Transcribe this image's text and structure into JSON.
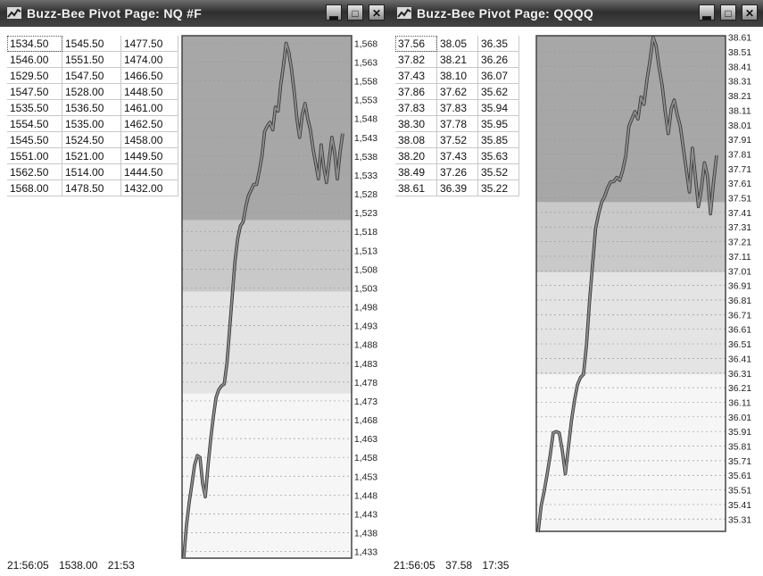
{
  "windows": [
    {
      "key": "nq",
      "title": "Buzz-Bee Pivot Page: NQ #F",
      "rows": [
        [
          "1534.50",
          "1545.50",
          "1477.50"
        ],
        [
          "1546.00",
          "1551.50",
          "1474.00"
        ],
        [
          "1529.50",
          "1547.50",
          "1466.50"
        ],
        [
          "1547.50",
          "1528.00",
          "1448.50"
        ],
        [
          "1535.50",
          "1536.50",
          "1461.00"
        ],
        [
          "1554.50",
          "1535.00",
          "1462.50"
        ],
        [
          "1545.50",
          "1524.50",
          "1458.00"
        ],
        [
          "1551.00",
          "1521.00",
          "1449.50"
        ],
        [
          "1562.50",
          "1514.00",
          "1444.50"
        ],
        [
          "1568.00",
          "1478.50",
          "1432.00"
        ]
      ],
      "status": [
        "21:56:05",
        "1538.00",
        "21:53"
      ]
    },
    {
      "key": "qqqq",
      "title": "Buzz-Bee Pivot Page: QQQQ",
      "rows": [
        [
          "37.56",
          "38.05",
          "36.35"
        ],
        [
          "37.82",
          "38.21",
          "36.26"
        ],
        [
          "37.43",
          "38.10",
          "36.07"
        ],
        [
          "37.86",
          "37.62",
          "35.62"
        ],
        [
          "37.83",
          "37.83",
          "35.94"
        ],
        [
          "38.30",
          "37.78",
          "35.95"
        ],
        [
          "38.08",
          "37.52",
          "35.85"
        ],
        [
          "38.20",
          "37.43",
          "35.63"
        ],
        [
          "38.49",
          "37.26",
          "35.52"
        ],
        [
          "38.61",
          "36.39",
          "35.22"
        ]
      ],
      "status": [
        "21:56:05",
        "37.58",
        "17:35"
      ]
    }
  ],
  "chart_data": [
    {
      "type": "line",
      "title": "",
      "ylabels": [
        "1,568",
        "1,563",
        "1,558",
        "1,553",
        "1,548",
        "1,543",
        "1,538",
        "1,533",
        "1,528",
        "1,523",
        "1,518",
        "1,513",
        "1,508",
        "1,503",
        "1,498",
        "1,493",
        "1,488",
        "1,483",
        "1,478",
        "1,473",
        "1,468",
        "1,463",
        "1,458",
        "1,453",
        "1,448",
        "1,443",
        "1,438",
        "1,433"
      ],
      "ylim": [
        1431,
        1570
      ],
      "grid": true,
      "series": [
        {
          "values": [
            1431.5,
            1440,
            1446,
            1451,
            1456,
            1458.5,
            1458,
            1451,
            1447.5,
            1456,
            1463,
            1469,
            1474,
            1476,
            1477,
            1477.5,
            1483,
            1492,
            1501,
            1510,
            1516,
            1519.5,
            1520.5,
            1524.5,
            1527.5,
            1529,
            1530.5,
            1530.5,
            1534,
            1538,
            1544.5,
            1546,
            1547,
            1545,
            1551,
            1550,
            1557,
            1562,
            1568,
            1565.5,
            1561,
            1555,
            1548,
            1543,
            1549,
            1552,
            1548,
            1545,
            1540,
            1536,
            1532,
            1541,
            1535,
            1531,
            1537,
            1543,
            1539,
            1532,
            1539,
            1544
          ]
        }
      ]
    },
    {
      "type": "line",
      "title": "",
      "ylabels": [
        "38.61",
        "38.51",
        "38.41",
        "38.31",
        "38.21",
        "38.11",
        "38.01",
        "37.91",
        "37.81",
        "37.71",
        "37.61",
        "37.51",
        "37.41",
        "37.31",
        "37.21",
        "37.11",
        "37.01",
        "36.91",
        "36.81",
        "36.71",
        "36.61",
        "36.51",
        "36.41",
        "36.31",
        "36.21",
        "36.11",
        "36.01",
        "35.91",
        "35.81",
        "35.71",
        "35.61",
        "35.51",
        "35.41",
        "35.31"
      ],
      "ylim": [
        35.22,
        38.62
      ],
      "grid": true,
      "series": [
        {
          "values": [
            35.22,
            35.4,
            35.5,
            35.62,
            35.75,
            35.9,
            35.91,
            35.9,
            35.78,
            35.62,
            35.8,
            35.98,
            36.12,
            36.23,
            36.28,
            36.3,
            36.5,
            36.8,
            37.05,
            37.3,
            37.4,
            37.48,
            37.52,
            37.58,
            37.62,
            37.62,
            37.65,
            37.63,
            37.7,
            37.8,
            38.0,
            38.05,
            38.1,
            38.05,
            38.2,
            38.15,
            38.32,
            38.45,
            38.61,
            38.55,
            38.4,
            38.28,
            38.1,
            37.95,
            38.12,
            38.18,
            38.08,
            38.0,
            37.85,
            37.7,
            37.55,
            37.85,
            37.65,
            37.45,
            37.58,
            37.75,
            37.66,
            37.4,
            37.62,
            37.8
          ]
        }
      ]
    }
  ],
  "colors": {
    "title_bar": "#3a3a3a",
    "band_dark": "#a7a7a7",
    "band_mid": "#c9c9c9",
    "band_light": "#e4e4e4",
    "band_faint": "#f6f6f6",
    "price_line": "#8f8f8f"
  },
  "icons": {
    "app": "bee-chart-icon",
    "minimize": "minimize-icon",
    "maximize": "maximize-icon",
    "close": "close-icon"
  }
}
